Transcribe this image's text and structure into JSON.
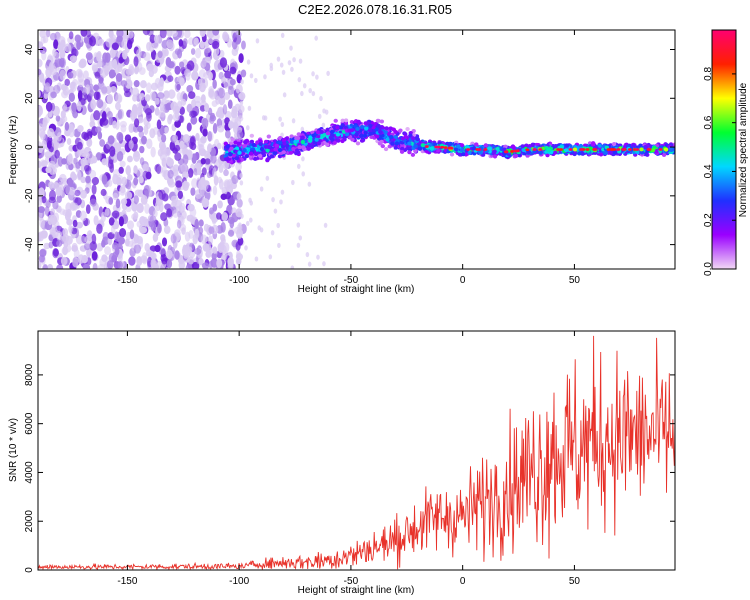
{
  "title": "C2E2.2026.078.16.31.R05",
  "colors": {
    "red_line": "#e8322a",
    "frame": "#000000",
    "scatter_light": "#d9c9f2",
    "scatter_mid": "#a77fe6",
    "scatter_dark": "#6a1fd9"
  },
  "chart_data": [
    {
      "type": "heatmap",
      "title": "",
      "xlabel": "Height of straight line (km)",
      "ylabel": "Frequency (Hz)",
      "xlim": [
        -190,
        95
      ],
      "ylim": [
        -50,
        48
      ],
      "xticks": [
        -150,
        -100,
        -50,
        0,
        50
      ],
      "yticks": [
        -40,
        -20,
        0,
        20,
        40
      ],
      "colorbar": {
        "label": "Normalized spectral amplitude",
        "range": [
          0,
          0.98
        ],
        "ticks": [
          0,
          0.2,
          0.4,
          0.6,
          0.8
        ],
        "tick_labels": [
          "0.0",
          "0.2",
          "0.4",
          "0.6",
          "0.8"
        ],
        "stops": [
          "#f2d9f5",
          "#9a00ff",
          "#2030ff",
          "#00d8ff",
          "#00ff30",
          "#ffff00",
          "#ff2000",
          "#ff0070"
        ]
      },
      "trace": {
        "x": [
          -105,
          -95,
          -85,
          -75,
          -65,
          -55,
          -50,
          -45,
          -40,
          -35,
          -30,
          -25,
          -20,
          -15,
          -10,
          0,
          10,
          20,
          30,
          40,
          50,
          60,
          70,
          80,
          90,
          95
        ],
        "y": [
          -2,
          -1,
          -1,
          1,
          4,
          6,
          7,
          6,
          8,
          5,
          3,
          2,
          1,
          0,
          0,
          -1,
          -1,
          -2,
          -1,
          -1,
          -1,
          -1,
          -1,
          -1,
          -1,
          -1
        ]
      },
      "noise_region": {
        "x_from": -190,
        "x_to": -100
      }
    },
    {
      "type": "line",
      "title": "",
      "xlabel": "Height of straight line (km)",
      "ylabel": "SNR (10 * v/v)",
      "xlim": [
        -190,
        95
      ],
      "ylim": [
        0,
        9800
      ],
      "xticks": [
        -150,
        -100,
        -50,
        0,
        50
      ],
      "yticks": [
        0,
        2000,
        4000,
        6000,
        8000
      ],
      "envelope": {
        "x": [
          -190,
          -150,
          -100,
          -90,
          -80,
          -70,
          -60,
          -50,
          -40,
          -30,
          -20,
          -10,
          0,
          10,
          20,
          30,
          40,
          50,
          60,
          70,
          80,
          90,
          95
        ],
        "mean": [
          120,
          130,
          150,
          250,
          300,
          320,
          400,
          600,
          900,
          1200,
          1800,
          2200,
          2200,
          2800,
          3400,
          4000,
          4800,
          5000,
          5300,
          5500,
          5500,
          5600,
          5600
        ],
        "spread": [
          80,
          80,
          100,
          150,
          200,
          250,
          300,
          400,
          500,
          700,
          900,
          1000,
          1100,
          1500,
          1800,
          2200,
          2600,
          2600,
          2600,
          2400,
          2200,
          2000,
          2000
        ]
      }
    }
  ]
}
